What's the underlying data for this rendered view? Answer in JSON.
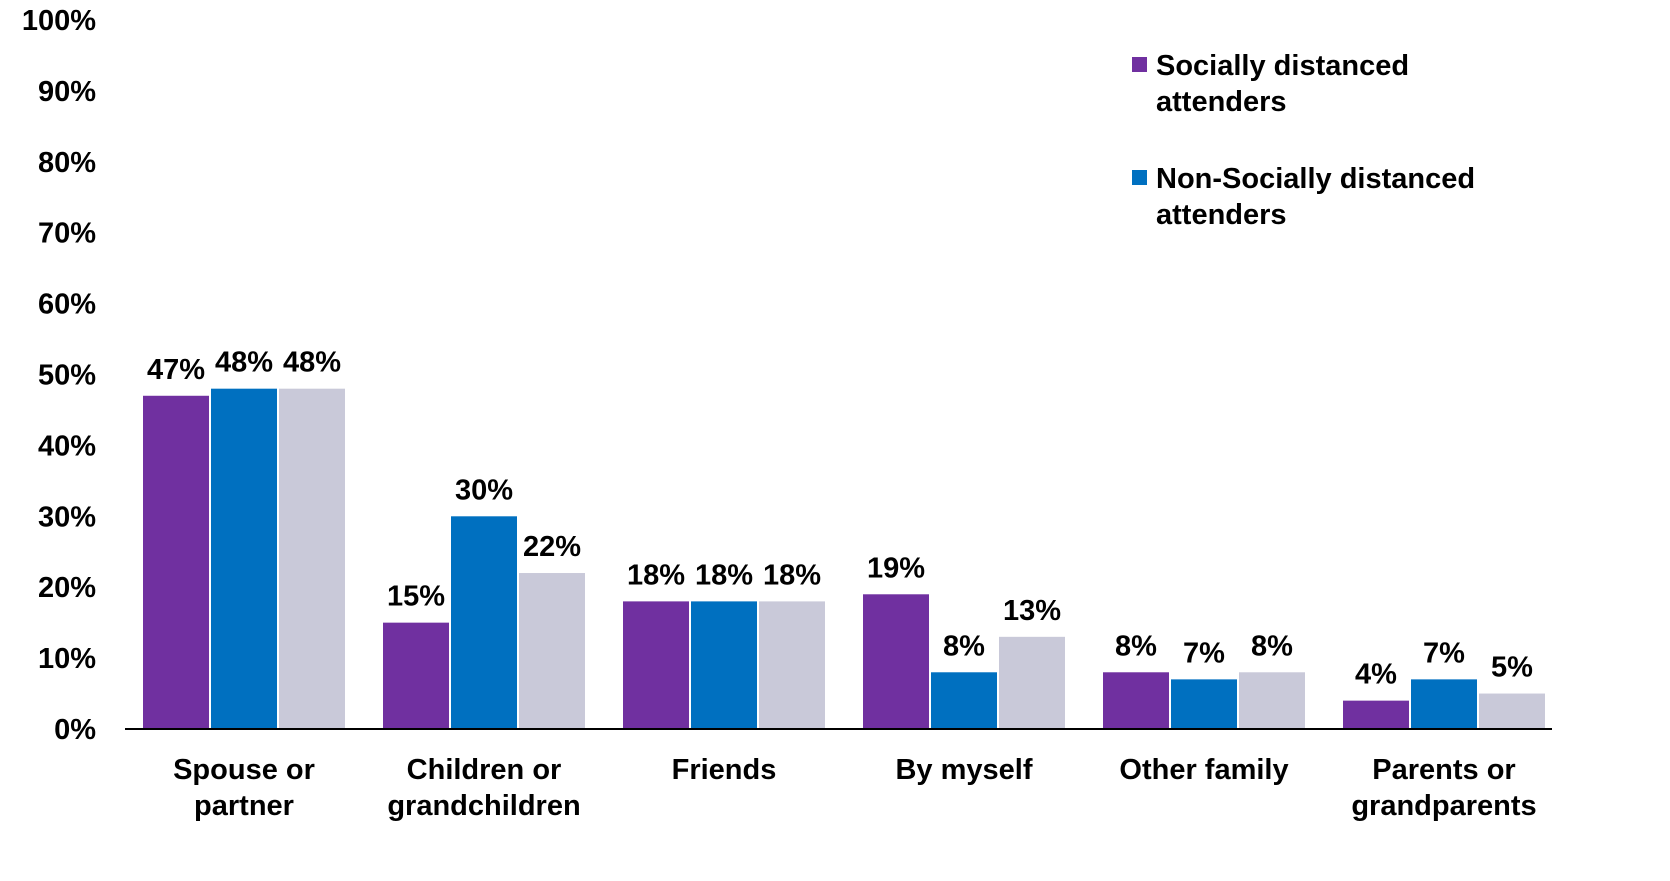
{
  "chart_data": {
    "type": "bar",
    "title": "",
    "xlabel": "",
    "ylabel": "",
    "ylim": [
      0,
      100
    ],
    "y_ticks": [
      "0%",
      "10%",
      "20%",
      "30%",
      "40%",
      "50%",
      "60%",
      "70%",
      "80%",
      "90%",
      "100%"
    ],
    "grid": false,
    "legend_position": "top-right",
    "categories": [
      [
        "Spouse or",
        "partner"
      ],
      [
        "Children or",
        "grandchildren"
      ],
      [
        "Friends"
      ],
      [
        "By myself"
      ],
      [
        "Other family"
      ],
      [
        "Parents or",
        "grandparents"
      ]
    ],
    "series": [
      {
        "name": "Socially distanced attenders",
        "color": "#7030a0",
        "values": [
          47,
          15,
          18,
          19,
          8,
          4
        ],
        "labels": [
          "47%",
          "15%",
          "18%",
          "19%",
          "8%",
          "4%"
        ]
      },
      {
        "name": "Non-Socially distanced attenders",
        "color": "#0070c0",
        "values": [
          48,
          30,
          18,
          8,
          7,
          7
        ],
        "labels": [
          "48%",
          "30%",
          "18%",
          "8%",
          "7%",
          "7%"
        ]
      },
      {
        "color": "#c9c9d9",
        "values": [
          48,
          22,
          18,
          13,
          8,
          5
        ],
        "labels": [
          "48%",
          "22%",
          "18%",
          "13%",
          "8%",
          "5%"
        ]
      }
    ]
  }
}
